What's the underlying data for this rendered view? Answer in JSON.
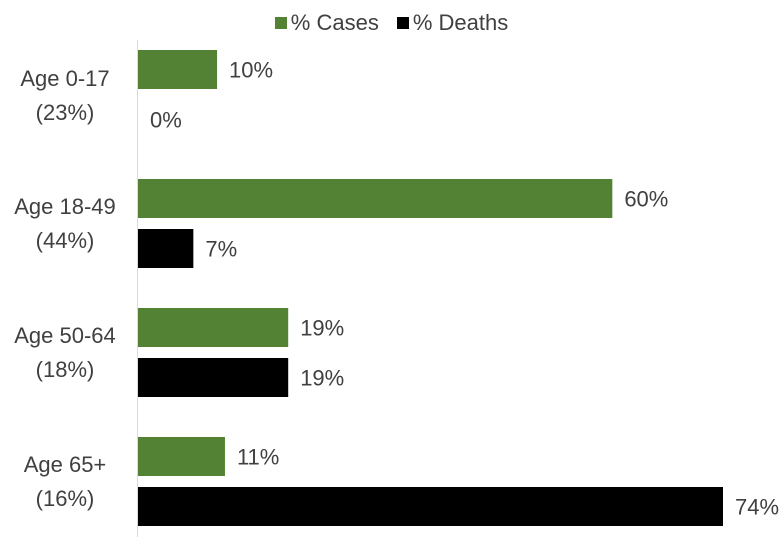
{
  "chart_data": {
    "type": "bar",
    "orientation": "horizontal",
    "categories": [
      {
        "line1": "Age 0-17",
        "line2": "(23%)"
      },
      {
        "line1": "Age 18-49",
        "line2": "(44%)"
      },
      {
        "line1": "Age 50-64",
        "line2": "(18%)"
      },
      {
        "line1": "Age 65+",
        "line2": "(16%)"
      }
    ],
    "series": [
      {
        "name": "% Cases",
        "color": "#548235",
        "values": [
          10,
          60,
          19,
          11
        ],
        "labels": [
          "10%",
          "60%",
          "19%",
          "11%"
        ]
      },
      {
        "name": "% Deaths",
        "color": "#000000",
        "values": [
          0,
          7,
          19,
          74
        ],
        "labels": [
          "0%",
          "7%",
          "19%",
          "74%"
        ]
      }
    ],
    "xlim": [
      0,
      74
    ],
    "legend_position": "top",
    "grid": false
  }
}
